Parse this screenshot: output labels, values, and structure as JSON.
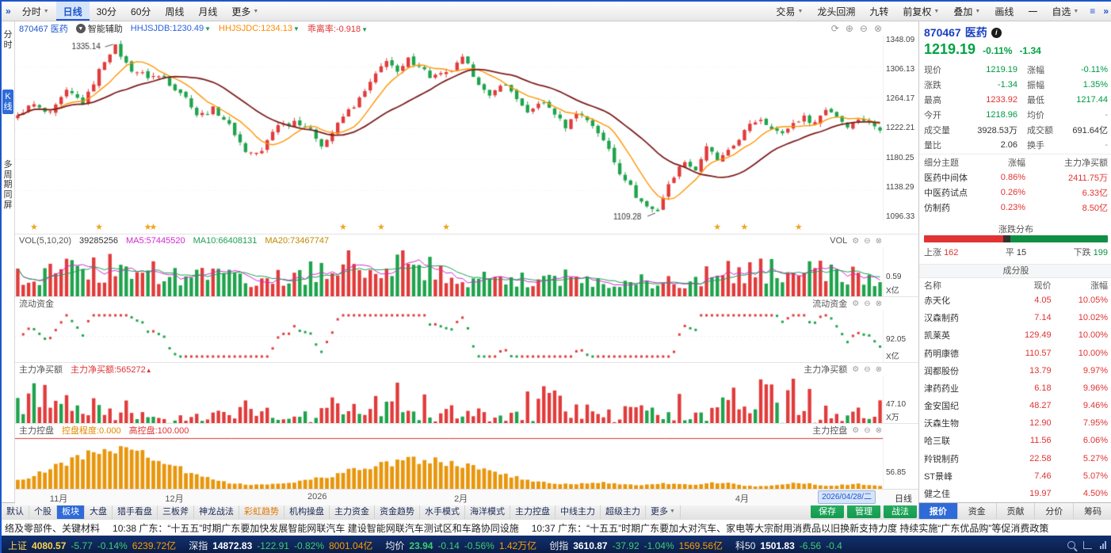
{
  "colors": {
    "up_red": "#e13b3b",
    "down_green": "#1fa34d",
    "accent_blue": "#1d55cc",
    "ma_fast": "#ff9500",
    "ma_slow": "#7d1d1d",
    "control_orange": "#e8960c",
    "star_gold": "#f0a420",
    "vol_ma5": "#d428d4",
    "vol_ma10": "#1ea054",
    "vol_ma20": "#c08a00"
  },
  "topbar": {
    "collapse": "»",
    "tabs": [
      {
        "label": "分时",
        "caret": true
      },
      {
        "label": "日线",
        "active": true
      },
      {
        "label": "30分"
      },
      {
        "label": "60分"
      },
      {
        "label": "周线"
      },
      {
        "label": "月线"
      },
      {
        "label": "更多",
        "caret": true
      }
    ],
    "right_items": [
      {
        "label": "交易",
        "caret": true
      },
      {
        "label": "龙头回溯"
      },
      {
        "label": "九转"
      },
      {
        "label": "前复权",
        "caret": true
      },
      {
        "label": "叠加",
        "caret": true
      },
      {
        "label": "画线"
      },
      {
        "label": "一"
      },
      {
        "label": "自选",
        "caret": true
      }
    ],
    "menu_icon": "≡",
    "expand_icon": "»"
  },
  "left_rail": {
    "items": [
      {
        "label": "分时"
      },
      {
        "label": "K线",
        "active": true
      },
      {
        "label": "多周期同屏"
      }
    ]
  },
  "kline_header": {
    "code": "870467",
    "name": "医药",
    "assist": "智能辅助",
    "ind1": "HHJSJDB:1230.49",
    "ind2": "HHJSJDC:1234.13",
    "ind3": "乖离率:-0.918"
  },
  "chart_data": {
    "type": "candlestick-multi-panel",
    "x_axis": {
      "labels": [
        {
          "text": "11月",
          "pos": 0.04
        },
        {
          "text": "12月",
          "pos": 0.173
        },
        {
          "text": "2026",
          "pos": 0.337
        },
        {
          "text": "2月",
          "pos": 0.506
        },
        {
          "text": "4月",
          "pos": 0.83
        }
      ],
      "date_box": "2026/04/28/二",
      "period": "日线"
    },
    "kline": {
      "y_labels": [
        "1348.09",
        "1306.13",
        "1264.17",
        "1222.21",
        "1180.25",
        "1138.29",
        "1096.33"
      ],
      "y_max": 1348.09,
      "y_min": 1096.33,
      "peak_label": "1335.14",
      "peak_value": 1335.14,
      "peak_index": 18,
      "low_label": "1109.28",
      "low_value": 1109.28,
      "low_index": 118,
      "last_close": 1219.19,
      "candles": 160,
      "close_anchors": [
        [
          0,
          1238
        ],
        [
          3,
          1252
        ],
        [
          6,
          1246
        ],
        [
          9,
          1268
        ],
        [
          12,
          1260
        ],
        [
          15,
          1300
        ],
        [
          18,
          1332
        ],
        [
          21,
          1305
        ],
        [
          24,
          1288
        ],
        [
          27,
          1295
        ],
        [
          30,
          1270
        ],
        [
          33,
          1240
        ],
        [
          36,
          1252
        ],
        [
          39,
          1222
        ],
        [
          42,
          1195
        ],
        [
          45,
          1188
        ],
        [
          48,
          1228
        ],
        [
          51,
          1235
        ],
        [
          54,
          1215
        ],
        [
          56,
          1202
        ],
        [
          59,
          1228
        ],
        [
          62,
          1250
        ],
        [
          65,
          1288
        ],
        [
          68,
          1312
        ],
        [
          70,
          1296
        ],
        [
          72,
          1320
        ],
        [
          74,
          1308
        ],
        [
          76,
          1288
        ],
        [
          79,
          1300
        ],
        [
          82,
          1315
        ],
        [
          84,
          1292
        ],
        [
          87,
          1268
        ],
        [
          89,
          1282
        ],
        [
          92,
          1262
        ],
        [
          94,
          1245
        ],
        [
          96,
          1258
        ],
        [
          99,
          1240
        ],
        [
          101,
          1228
        ],
        [
          103,
          1246
        ],
        [
          105,
          1230
        ],
        [
          107,
          1216
        ],
        [
          109,
          1198
        ],
        [
          111,
          1162
        ],
        [
          114,
          1128
        ],
        [
          118,
          1112
        ],
        [
          121,
          1155
        ],
        [
          123,
          1182
        ],
        [
          125,
          1168
        ],
        [
          127,
          1192
        ],
        [
          129,
          1178
        ],
        [
          132,
          1202
        ],
        [
          135,
          1222
        ],
        [
          137,
          1236
        ],
        [
          139,
          1228
        ],
        [
          141,
          1212
        ],
        [
          143,
          1226
        ],
        [
          145,
          1240
        ],
        [
          147,
          1233
        ],
        [
          149,
          1245
        ],
        [
          151,
          1237
        ],
        [
          153,
          1230
        ],
        [
          155,
          1236
        ],
        [
          157,
          1226
        ],
        [
          159,
          1219.19
        ]
      ],
      "star_indices": [
        3,
        15,
        24,
        25,
        60,
        67,
        79,
        129,
        134,
        144
      ]
    },
    "vol": {
      "label": "VOL(5,10,20)",
      "value": "39285256",
      "ma5": "MA5:57445520",
      "ma10": "MA10:66408131",
      "ma20": "MA20:73467747",
      "right_label": "VOL",
      "axis_value": "0.59",
      "axis_unit": "X亿",
      "spikes": [
        [
          18,
          1.3,
          350
        ],
        [
          66,
          1.6,
          260
        ],
        [
          100,
          0.4,
          120
        ],
        [
          140,
          1.2,
          260
        ]
      ]
    },
    "funds": {
      "title": "流动资金",
      "right_label": "流动资金",
      "axis_value": "92.05",
      "axis_unit": "X亿"
    },
    "netbuy": {
      "title": "主力净买额",
      "value_label": "主力净买额:565272",
      "right_label": "主力净买额",
      "axis_value": "47.10",
      "axis_unit": "X万",
      "spikes": [
        [
          2,
          2.4,
          6
        ],
        [
          12,
          1.1,
          90
        ],
        [
          45,
          0.5,
          70
        ],
        [
          67,
          1.1,
          150
        ],
        [
          97,
          0.9,
          60
        ],
        [
          120,
          0.6,
          70
        ],
        [
          138,
          1.5,
          170
        ]
      ]
    },
    "control": {
      "title": "主力控盘",
      "degree_label": "控盘程度:0.000",
      "high_label": "高控盘:100.000",
      "right_label": "主力控盘",
      "axis_value": "56.85",
      "humps": [
        [
          18,
          0.85,
          200
        ],
        [
          74,
          0.6,
          330
        ],
        [
          108,
          0.1,
          30
        ],
        [
          119,
          0.09,
          22
        ],
        [
          129,
          0.11,
          30
        ],
        [
          144,
          0.1,
          30
        ],
        [
          155,
          0.08,
          20
        ]
      ]
    }
  },
  "right_panel": {
    "code": "870467",
    "name": "医药",
    "info": "i",
    "price": "1219.19",
    "change_pct": "-0.11%",
    "change": "-1.34",
    "quote_rows": [
      {
        "l1": "现价",
        "v1": "1219.19",
        "c1": "green",
        "l2": "涨幅",
        "v2": "-0.11%",
        "c2": "green"
      },
      {
        "l1": "涨跌",
        "v1": "-1.34",
        "c1": "green",
        "l2": "振幅",
        "v2": "1.35%",
        "c2": "green"
      },
      {
        "l1": "最高",
        "v1": "1233.92",
        "c1": "red",
        "l2": "最低",
        "v2": "1217.44",
        "c2": "green"
      },
      {
        "l1": "今开",
        "v1": "1218.96",
        "c1": "green",
        "l2": "均价",
        "v2": "-",
        "c2": "plain"
      },
      {
        "l1": "成交量",
        "v1": "3928.53万",
        "c1": "dark",
        "l2": "成交额",
        "v2": "691.64亿",
        "c2": "dark"
      },
      {
        "l1": "量比",
        "v1": "2.06",
        "c1": "dark",
        "l2": "换手",
        "v2": "-",
        "c2": "plain"
      }
    ],
    "themes": {
      "headers": [
        "细分主题",
        "涨幅",
        "主力净买额"
      ],
      "rows": [
        {
          "name": "医药中间体",
          "pct": "0.86%",
          "net": "2411.75万"
        },
        {
          "name": "中医药试点",
          "pct": "0.26%",
          "net": "6.33亿"
        },
        {
          "name": "仿制药",
          "pct": "0.23%",
          "net": "8.50亿"
        }
      ]
    },
    "distribution": {
      "title": "涨跌分布",
      "up_label": "上涨",
      "up": "162",
      "flat_label": "平",
      "flat": "15",
      "down_label": "下跌",
      "down": "199",
      "up_ratio": 0.431,
      "flat_ratio": 0.04,
      "down_ratio": 0.529
    },
    "constituents": {
      "title": "成分股",
      "headers": [
        "名称",
        "现价",
        "涨幅"
      ],
      "rows": [
        [
          "赤天化",
          "4.05",
          "10.05%"
        ],
        [
          "汉森制药",
          "7.14",
          "10.02%"
        ],
        [
          "凯莱英",
          "129.49",
          "10.00%"
        ],
        [
          "药明康德",
          "110.57",
          "10.00%"
        ],
        [
          "润都股份",
          "13.79",
          "9.97%"
        ],
        [
          "津药药业",
          "6.18",
          "9.96%"
        ],
        [
          "金安国纪",
          "48.27",
          "9.46%"
        ],
        [
          "沃森生物",
          "12.90",
          "7.95%"
        ],
        [
          "哈三联",
          "11.56",
          "6.06%"
        ],
        [
          "羚锐制药",
          "22.58",
          "5.27%"
        ],
        [
          "ST景峰",
          "7.46",
          "5.07%"
        ],
        [
          "健之佳",
          "19.97",
          "4.50%"
        ]
      ]
    },
    "tabs": [
      {
        "label": "报价",
        "active": true
      },
      {
        "label": "资金"
      },
      {
        "label": "贡献"
      },
      {
        "label": "分价"
      },
      {
        "label": "筹码"
      }
    ]
  },
  "bottom_bar": {
    "tabs": [
      {
        "label": "默认"
      },
      {
        "label": "个股"
      },
      {
        "label": "板块",
        "active": true
      },
      {
        "label": "大盘"
      },
      {
        "label": "猎手看盘"
      },
      {
        "label": "三板斧"
      },
      {
        "label": "神龙战法"
      },
      {
        "label": "彩虹趋势",
        "accent": "orange"
      },
      {
        "label": "机构操盘"
      },
      {
        "label": "主力资金"
      },
      {
        "label": "资金趋势"
      },
      {
        "label": "水手模式"
      },
      {
        "label": "海洋模式"
      },
      {
        "label": "主力控盘"
      },
      {
        "label": "中线主力"
      },
      {
        "label": "超级主力"
      },
      {
        "label": "更多",
        "caret": true
      }
    ],
    "buttons": [
      {
        "label": "保存"
      },
      {
        "label": "管理"
      },
      {
        "label": "战法"
      }
    ]
  },
  "ticker": {
    "segments": [
      "络及零部件、关键材料",
      "10:38 广东：“十五五”时期广东要加快发展智能网联汽车 建设智能网联汽车测试区和车路协同设施",
      "10:37 广东：“十五五”时期广东要加大对汽车、家电等大宗耐用消费品以旧换新支持力度 持续实施“广东优品购”等促消费政策"
    ]
  },
  "status_bar": {
    "indices": [
      {
        "name": "上证",
        "value": "4080.57",
        "change": "-5.77",
        "pct": "-0.14%",
        "amount": "6239.72亿",
        "name_color": "y",
        "value_color": "y"
      },
      {
        "name": "深指",
        "value": "14872.83",
        "change": "-122.91",
        "pct": "-0.82%",
        "amount": "8001.04亿"
      },
      {
        "name": "均价",
        "value": "23.94",
        "change": "-0.14",
        "pct": "-0.56%",
        "amount": "1.42万亿",
        "value_color": "g"
      },
      {
        "name": "创指",
        "value": "3610.87",
        "change": "-37.92",
        "pct": "-1.04%",
        "amount": "1569.56亿"
      },
      {
        "name": "科50",
        "value": "1501.83",
        "change": "-6.56",
        "pct": "-0.4"
      }
    ]
  }
}
